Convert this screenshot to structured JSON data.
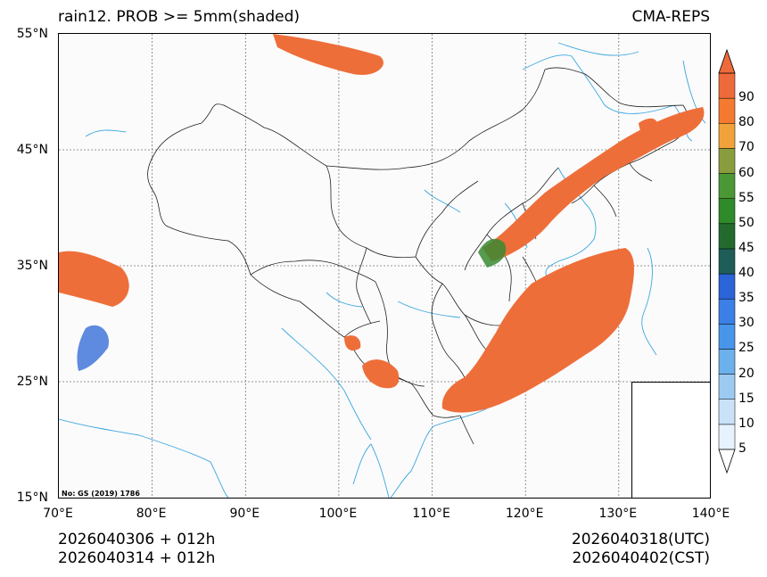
{
  "title": "rain12. PROB >= 5mm(shaded)",
  "model": "CMA-REPS",
  "lat_labels": [
    "55°N",
    "45°N",
    "35°N",
    "25°N",
    "15°N"
  ],
  "lon_labels": [
    "70°E",
    "80°E",
    "90°E",
    "100°E",
    "110°E",
    "120°E",
    "130°E",
    "140°E"
  ],
  "init_line_utc": "2026040306  +  012h",
  "init_line_cst": "2026040314  +  012h",
  "valid_utc": "2026040318(UTC)",
  "valid_cst": "2026040402(CST)",
  "credit": "No: GS (2019) 1786",
  "colorbar": {
    "levels": [
      "5",
      "10",
      "15",
      "20",
      "25",
      "30",
      "35",
      "40",
      "45",
      "50",
      "55",
      "60",
      "70",
      "80",
      "90"
    ],
    "colors": [
      "#e6f2fd",
      "#c9e2f8",
      "#9dcaf0",
      "#6cb0ec",
      "#4896ec",
      "#3c7fe6",
      "#2a64d6",
      "#1f5e58",
      "#236b2d",
      "#2f8a2a",
      "#4b9736",
      "#8a9d3e",
      "#f2a23a",
      "#f37a30",
      "#ee6a3a"
    ]
  },
  "colors": {
    "precip": "#ee6e3a",
    "coast": "#3aa6e0",
    "border": "#222222"
  }
}
